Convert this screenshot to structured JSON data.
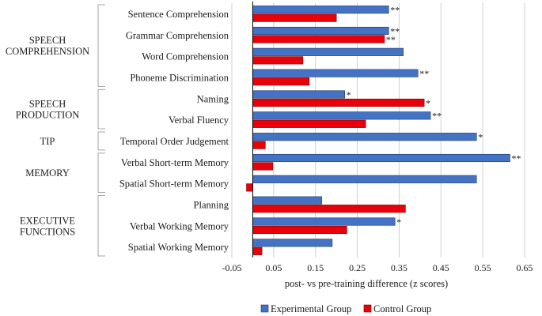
{
  "chart_data": {
    "type": "bar",
    "orientation": "horizontal",
    "xlabel": "post- vs pre-training difference (z scores)",
    "xlim": [
      -0.05,
      0.65
    ],
    "xticks": [
      -0.05,
      0.05,
      0.15,
      0.25,
      0.35,
      0.45,
      0.55,
      0.65
    ],
    "xtick_labels": [
      "-0.05",
      "0.05",
      "0.15",
      "0.25",
      "0.35",
      "0.45",
      "0.55",
      "0.65"
    ],
    "grid": true,
    "legend_position": "bottom",
    "categories": [
      "Sentence Comprehension",
      "Grammar Comprehension",
      "Word Comprehension",
      "Phoneme Discrimination",
      "Naming",
      "Verbal Fluency",
      "Temporal Order Judgement",
      "Verbal Short-term Memory",
      "Spatial Short-term Memory",
      "Planning",
      "Verbal Working Memory",
      "Spatial Working Memory"
    ],
    "series": [
      {
        "name": "Experimental Group",
        "color": "#4472C4",
        "values": [
          0.325,
          0.325,
          0.36,
          0.395,
          0.22,
          0.425,
          0.535,
          0.615,
          0.535,
          0.165,
          0.34,
          0.19
        ],
        "significance": [
          "**",
          "**",
          "",
          "**",
          "*",
          "**",
          "*",
          "**",
          "",
          "",
          "*",
          ""
        ]
      },
      {
        "name": "Control Group",
        "color": "#E8000B",
        "values": [
          0.2,
          0.315,
          0.12,
          0.135,
          0.41,
          0.27,
          0.03,
          0.048,
          -0.015,
          0.365,
          0.225,
          0.022
        ],
        "significance": [
          "",
          "**",
          "",
          "",
          "*",
          "",
          "",
          "",
          "",
          "",
          "",
          ""
        ]
      }
    ],
    "groups": [
      {
        "label": [
          "SPEECH",
          "COMPREHENSION"
        ],
        "from": 0,
        "to": 3
      },
      {
        "label": [
          "SPEECH",
          "PRODUCTION"
        ],
        "from": 4,
        "to": 5
      },
      {
        "label": [
          "TIP"
        ],
        "from": 6,
        "to": 6
      },
      {
        "label": [
          "MEMORY"
        ],
        "from": 7,
        "to": 8
      },
      {
        "label": [
          "EXECUTIVE",
          "FUNCTIONS"
        ],
        "from": 9,
        "to": 11
      }
    ]
  }
}
